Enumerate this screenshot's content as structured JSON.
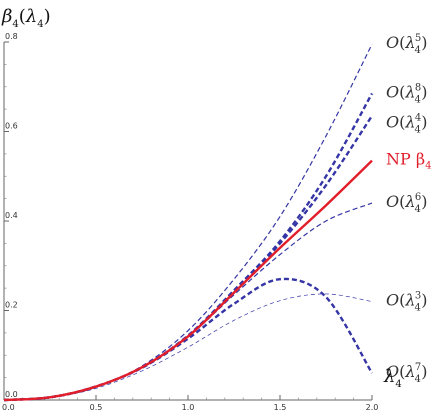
{
  "chart_data": {
    "type": "line",
    "xlabel": "λ4",
    "ylabel": "β4(λ4)",
    "xlim": [
      0,
      2
    ],
    "ylim": [
      0,
      0.8
    ],
    "x_ticks": [
      "0.0",
      "0.5",
      "1.0",
      "1.5",
      "2.0"
    ],
    "y_ticks": [
      "0.0",
      "0.2",
      "0.4",
      "0.6",
      "0.8"
    ],
    "grid": false,
    "legend": "none",
    "x": [
      0,
      0.25,
      0.5,
      0.75,
      1.0,
      1.25,
      1.5,
      1.75,
      2.0
    ],
    "series": [
      {
        "name": "O(λ4^5)",
        "label_base": "O(λ",
        "label_sub": "4",
        "label_sup": "5",
        "label_end": ")",
        "style": "thin-dashed",
        "color": "#3535a5",
        "values": [
          0,
          0.006,
          0.03,
          0.076,
          0.155,
          0.27,
          0.41,
          0.59,
          0.795
        ]
      },
      {
        "name": "O(λ4^8)",
        "label_base": "O(λ",
        "label_sub": "4",
        "label_sup": "8",
        "label_end": ")",
        "style": "thick-dashed",
        "color": "#3535a5",
        "values": [
          0,
          0.006,
          0.03,
          0.073,
          0.144,
          0.245,
          0.355,
          0.5,
          0.685
        ]
      },
      {
        "name": "O(λ4^4)",
        "label_base": "O(λ",
        "label_sub": "4",
        "label_sup": "4",
        "label_end": ")",
        "style": "thick-dashed",
        "color": "#3535a5",
        "values": [
          0,
          0.006,
          0.03,
          0.073,
          0.143,
          0.243,
          0.35,
          0.48,
          0.635
        ]
      },
      {
        "name": "NP β4",
        "label_base": "NP β",
        "label_sub": "4",
        "label_sup": "",
        "label_end": "",
        "style": "solid",
        "color": "#e21e2a",
        "values": [
          0,
          0.006,
          0.03,
          0.073,
          0.142,
          0.24,
          0.34,
          0.435,
          0.535
        ]
      },
      {
        "name": "O(λ4^6)",
        "label_base": "O(λ",
        "label_sub": "4",
        "label_sup": "6",
        "label_end": ")",
        "style": "thin-dashed",
        "color": "#3535a5",
        "values": [
          0,
          0.006,
          0.03,
          0.073,
          0.141,
          0.235,
          0.325,
          0.4,
          0.44
        ]
      },
      {
        "name": "O(λ4^3)",
        "label_base": "O(λ",
        "label_sub": "4",
        "label_sup": "3",
        "label_end": ")",
        "style": "very-thin-dashed",
        "color": "#3535a5",
        "values": [
          0,
          0.005,
          0.026,
          0.065,
          0.118,
          0.178,
          0.222,
          0.237,
          0.22
        ]
      },
      {
        "name": "O(λ4^7)",
        "label_base": "O(λ",
        "label_sub": "4",
        "label_sup": "7",
        "label_end": ")",
        "style": "thick-dashed",
        "color": "#3535a5",
        "values": [
          0,
          0.006,
          0.03,
          0.072,
          0.137,
          0.215,
          0.27,
          0.23,
          0.06
        ]
      }
    ]
  }
}
